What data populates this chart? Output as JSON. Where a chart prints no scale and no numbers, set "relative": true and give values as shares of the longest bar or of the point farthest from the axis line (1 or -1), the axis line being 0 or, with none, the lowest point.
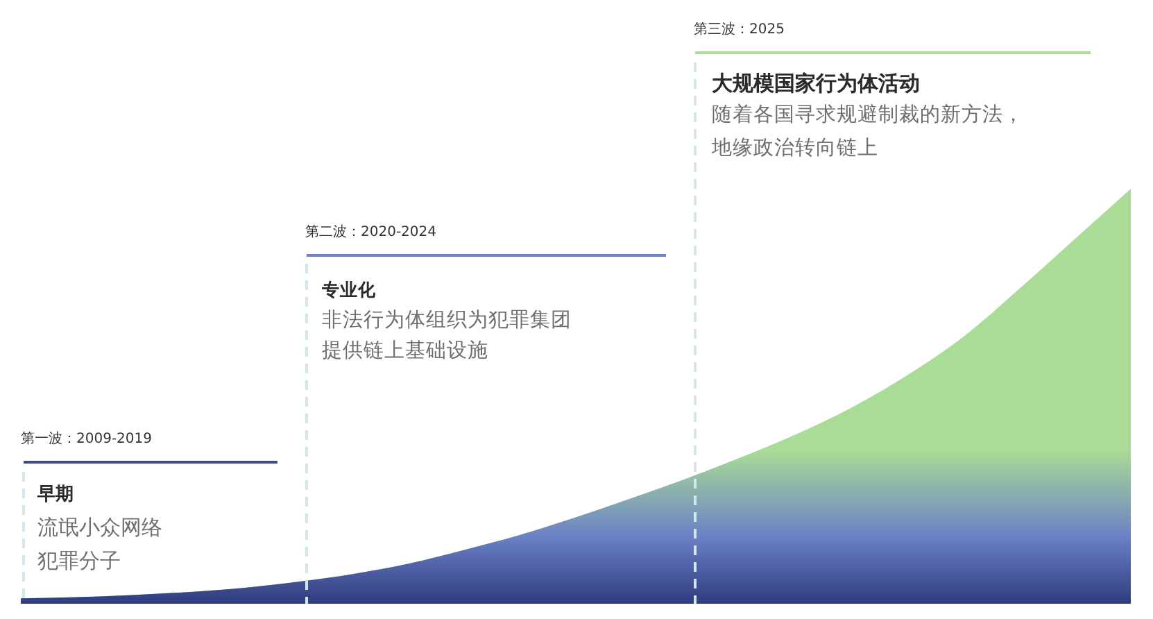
{
  "chart_data": {
    "type": "area",
    "relative": true,
    "categories": [
      null,
      null,
      null,
      null,
      null,
      null,
      null,
      null,
      null,
      null,
      null,
      null,
      null,
      null,
      null,
      null,
      null,
      null,
      null,
      null,
      null
    ],
    "values": [
      0.013,
      0.016,
      0.021,
      0.028,
      0.038,
      0.053,
      0.072,
      0.097,
      0.13,
      0.166,
      0.208,
      0.254,
      0.302,
      0.354,
      0.41,
      0.475,
      0.553,
      0.645,
      0.76,
      0.88,
      1.0
    ],
    "color": "#a9dc97",
    "annotations": [
      "第一波：2009-2019",
      "早期",
      "流氓小众网络",
      "犯罪分子",
      "第二波：2020-2024",
      "专业化",
      "非法行为体组织为犯罪集团",
      "提供链上基础设施",
      "第三波：2025",
      "大规模国家行为体活动",
      "随着各国寻求规避制裁的新方法，",
      "地缘政治转向链上"
    ]
  }
}
